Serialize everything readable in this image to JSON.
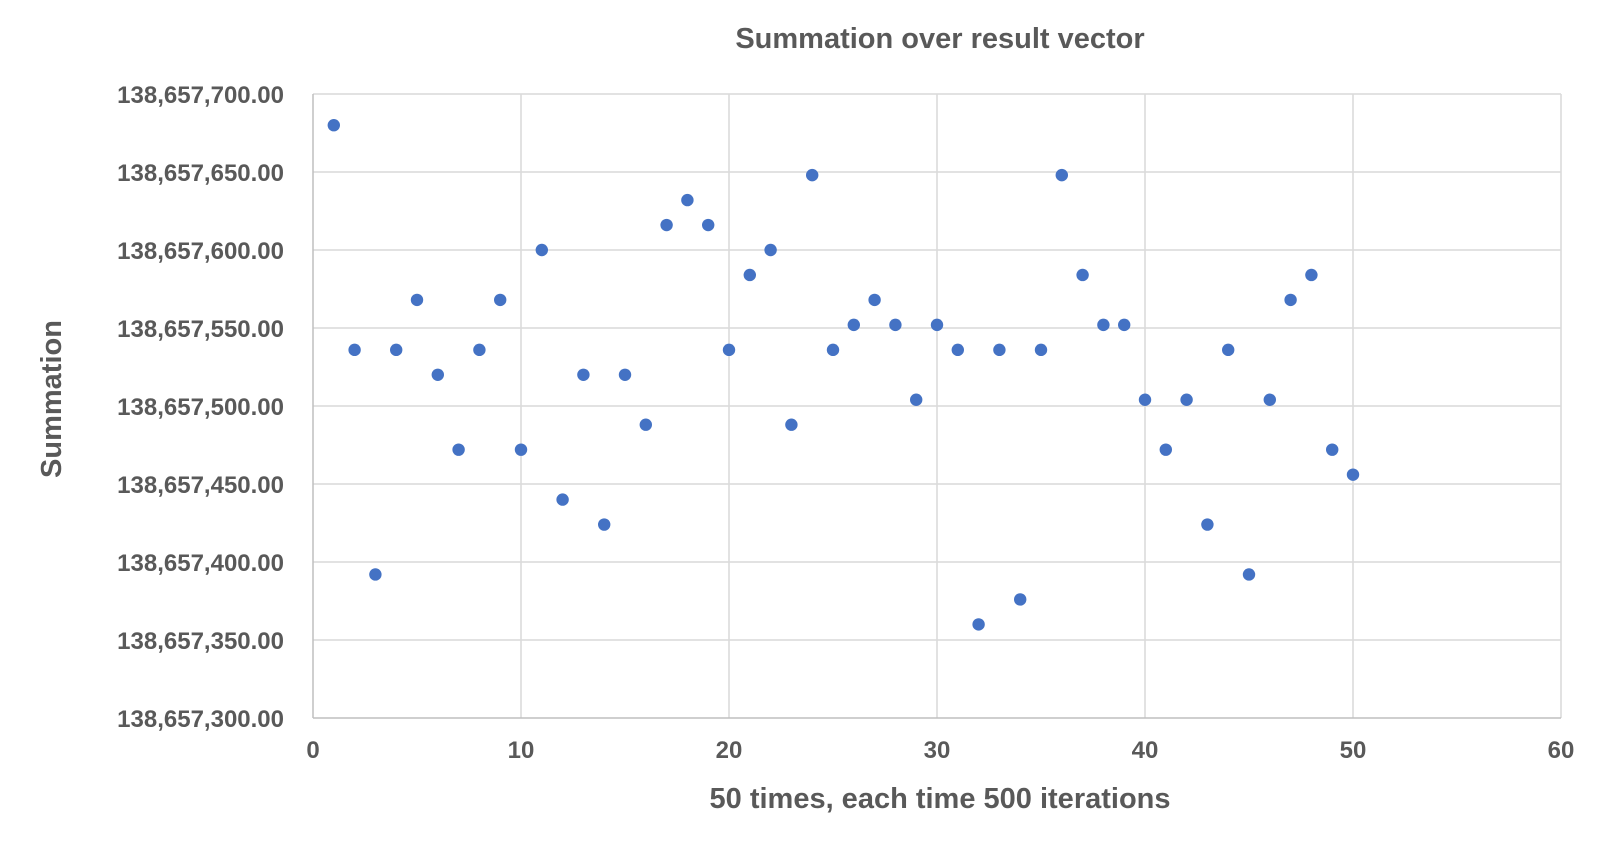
{
  "chart_data": {
    "type": "scatter",
    "title": "Summation over result vector",
    "xlabel": "50 times, each time 500 iterations",
    "ylabel": "Summation",
    "xlim": [
      0,
      60
    ],
    "ylim": [
      138657300,
      138657700
    ],
    "x_ticks": [
      "0",
      "10",
      "20",
      "30",
      "40",
      "50",
      "60"
    ],
    "y_ticks": [
      "138,657,300.00",
      "138,657,350.00",
      "138,657,400.00",
      "138,657,450.00",
      "138,657,500.00",
      "138,657,550.00",
      "138,657,600.00",
      "138,657,650.00",
      "138,657,700.00"
    ],
    "grid": true,
    "legend": "none",
    "marker_color": "#4472C4",
    "series": [
      {
        "x": [
          1,
          2,
          3,
          4,
          5,
          6,
          7,
          8,
          9,
          10,
          11,
          12,
          13,
          14,
          15,
          16,
          17,
          18,
          19,
          20,
          21,
          22,
          23,
          24,
          25,
          26,
          27,
          28,
          29,
          30,
          31,
          32,
          33,
          34,
          35,
          36,
          37,
          38,
          39,
          40,
          41,
          42,
          43,
          44,
          45,
          46,
          47,
          48,
          49,
          50
        ],
        "y": [
          138657680,
          138657536,
          138657392,
          138657536,
          138657568,
          138657520,
          138657472,
          138657536,
          138657568,
          138657472,
          138657600,
          138657440,
          138657520,
          138657424,
          138657520,
          138657488,
          138657616,
          138657632,
          138657616,
          138657536,
          138657584,
          138657600,
          138657488,
          138657648,
          138657536,
          138657552,
          138657568,
          138657552,
          138657504,
          138657552,
          138657536,
          138657360,
          138657536,
          138657376,
          138657536,
          138657648,
          138657584,
          138657552,
          138657552,
          138657504,
          138657472,
          138657504,
          138657424,
          138657536,
          138657392,
          138657504,
          138657568,
          138657584,
          138657472,
          138657456
        ]
      }
    ]
  }
}
